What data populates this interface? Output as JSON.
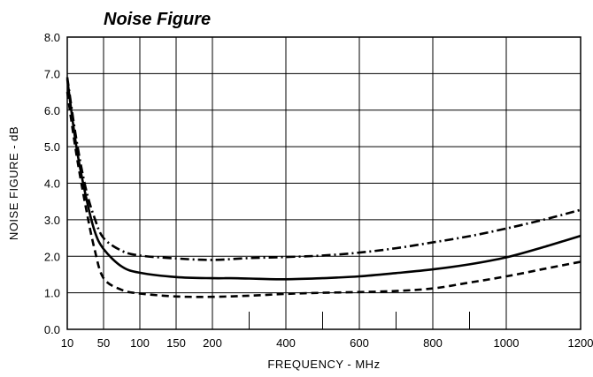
{
  "chart_data": {
    "type": "line",
    "title": "Noise Figure",
    "xlabel": "FREQUENCY - MHz",
    "ylabel": "NOISE FIGURE - dB",
    "xlim": [
      10,
      1200
    ],
    "ylim": [
      0,
      8
    ],
    "grid": true,
    "x_ticks": [
      "10",
      "50",
      "100",
      "150",
      "200",
      "400",
      "600",
      "800",
      "1000",
      "1200"
    ],
    "x_tick_values": [
      10,
      50,
      100,
      150,
      200,
      400,
      600,
      800,
      1000,
      1200
    ],
    "y_ticks": [
      "0.0",
      "1.0",
      "2.0",
      "3.0",
      "4.0",
      "5.0",
      "6.0",
      "7.0",
      "8.0"
    ],
    "y_tick_values": [
      0,
      1,
      2,
      3,
      4,
      5,
      6,
      7,
      8
    ],
    "minor_x_ticks": [
      300,
      500,
      700,
      900
    ],
    "series": [
      {
        "style": "dashdot",
        "x": [
          10,
          20,
          30,
          40,
          50,
          75,
          100,
          150,
          200,
          300,
          400,
          500,
          600,
          700,
          800,
          900,
          1000,
          1100,
          1200
        ],
        "y": [
          6.9,
          5.2,
          3.9,
          3.05,
          2.5,
          2.15,
          2.02,
          1.94,
          1.9,
          1.95,
          1.98,
          2.02,
          2.1,
          2.22,
          2.38,
          2.55,
          2.76,
          3.0,
          3.27
        ]
      },
      {
        "style": "solid",
        "x": [
          10,
          20,
          30,
          40,
          50,
          75,
          100,
          150,
          200,
          250,
          300,
          400,
          500,
          600,
          700,
          800,
          900,
          1000,
          1100,
          1200
        ],
        "y": [
          6.85,
          5.0,
          3.7,
          2.7,
          2.2,
          1.72,
          1.55,
          1.43,
          1.4,
          1.4,
          1.39,
          1.37,
          1.4,
          1.45,
          1.54,
          1.64,
          1.78,
          1.97,
          2.25,
          2.56
        ]
      },
      {
        "style": "dashed",
        "x": [
          10,
          20,
          30,
          40,
          50,
          75,
          100,
          150,
          200,
          300,
          400,
          500,
          600,
          700,
          800,
          900,
          1000,
          1100,
          1200
        ],
        "y": [
          6.5,
          4.8,
          3.4,
          2.2,
          1.4,
          1.08,
          0.98,
          0.9,
          0.89,
          0.92,
          0.97,
          1.0,
          1.02,
          1.05,
          1.12,
          1.28,
          1.45,
          1.65,
          1.85
        ]
      }
    ]
  }
}
